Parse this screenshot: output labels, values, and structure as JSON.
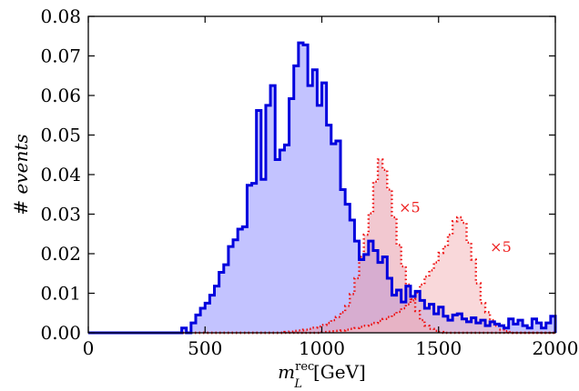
{
  "chart_data": {
    "type": "area",
    "xlabel": {
      "main": "m",
      "sup": "rec",
      "sub": "L",
      "unit": "[GeV]"
    },
    "ylabel": "# events",
    "xlim": [
      0,
      2000
    ],
    "ylim": [
      0,
      0.08
    ],
    "xticks": [
      "0",
      "500",
      "1000",
      "1500",
      "2000"
    ],
    "yticks": [
      "0.00",
      "0.01",
      "0.02",
      "0.03",
      "0.04",
      "0.05",
      "0.06",
      "0.07",
      "0.08"
    ],
    "grid": false,
    "bin_width": 20,
    "series": [
      {
        "style": "solid",
        "line_color": "#0000dd",
        "fill_color": "#b8b8ff",
        "x": [
          0,
          20,
          40,
          60,
          80,
          100,
          120,
          140,
          160,
          180,
          200,
          220,
          240,
          260,
          280,
          300,
          320,
          340,
          360,
          380,
          400,
          420,
          440,
          460,
          480,
          500,
          520,
          540,
          560,
          580,
          600,
          620,
          640,
          660,
          680,
          700,
          720,
          740,
          760,
          780,
          800,
          820,
          840,
          860,
          880,
          900,
          920,
          940,
          960,
          980,
          1000,
          1020,
          1040,
          1060,
          1080,
          1100,
          1120,
          1140,
          1160,
          1180,
          1200,
          1220,
          1240,
          1260,
          1280,
          1300,
          1320,
          1340,
          1360,
          1380,
          1400,
          1420,
          1440,
          1460,
          1480,
          1500,
          1520,
          1540,
          1560,
          1580,
          1600,
          1620,
          1640,
          1660,
          1680,
          1700,
          1720,
          1740,
          1760,
          1780,
          1800,
          1820,
          1840,
          1860,
          1880,
          1900,
          1920,
          1940,
          1960,
          1980
        ],
        "y": [
          0,
          0,
          0,
          0,
          0,
          0,
          0,
          0,
          0,
          0,
          0,
          0,
          0,
          0,
          0,
          0,
          0,
          0,
          0,
          0,
          0.0012,
          0,
          0.0025,
          0.0045,
          0.0062,
          0.0075,
          0.0095,
          0.0118,
          0.0153,
          0.0172,
          0.0218,
          0.0235,
          0.0262,
          0.0268,
          0.0373,
          0.0378,
          0.0562,
          0.0388,
          0.0575,
          0.0625,
          0.0438,
          0.0462,
          0.0475,
          0.0592,
          0.0675,
          0.0733,
          0.0728,
          0.0625,
          0.0665,
          0.0575,
          0.0632,
          0.0525,
          0.0478,
          0.0485,
          0.0362,
          0.0325,
          0.0285,
          0.0232,
          0.0185,
          0.0198,
          0.0232,
          0.0208,
          0.0178,
          0.0192,
          0.0138,
          0.0095,
          0.0108,
          0.0078,
          0.0118,
          0.0092,
          0.0105,
          0.0082,
          0.0062,
          0.0072,
          0.0048,
          0.0065,
          0.0042,
          0.0032,
          0.0045,
          0.0048,
          0.0035,
          0.0028,
          0.0038,
          0.0025,
          0.0032,
          0.0018,
          0.0028,
          0.0022,
          0.0018,
          0.0012,
          0.0035,
          0.0022,
          0.0032,
          0.0018,
          0.0012,
          0.0035,
          0.0025,
          0.0012,
          0.0025,
          0.0042
        ]
      },
      {
        "style": "dotted",
        "line_color": "#ee1111",
        "fill_color": "#e89aaa",
        "x": [
          0,
          20,
          40,
          60,
          80,
          100,
          120,
          140,
          160,
          180,
          200,
          220,
          240,
          260,
          280,
          300,
          320,
          340,
          360,
          380,
          400,
          420,
          440,
          460,
          480,
          500,
          520,
          540,
          560,
          580,
          600,
          620,
          640,
          660,
          680,
          700,
          720,
          740,
          760,
          780,
          800,
          820,
          840,
          860,
          880,
          900,
          920,
          940,
          960,
          980,
          1000,
          1020,
          1040,
          1060,
          1080,
          1100,
          1120,
          1140,
          1160,
          1180,
          1200,
          1220,
          1240,
          1260,
          1280,
          1300,
          1320,
          1340,
          1360,
          1380,
          1400,
          1420,
          1440,
          1460,
          1480,
          1500,
          1520,
          1540,
          1560,
          1580,
          1600,
          1620,
          1640,
          1660,
          1680,
          1700,
          1720,
          1740,
          1760,
          1780,
          1800,
          1820,
          1840,
          1860,
          1880,
          1900,
          1920,
          1940,
          1960,
          1980
        ],
        "y": [
          0,
          0,
          0,
          0,
          0,
          0,
          0,
          0,
          0,
          0,
          0,
          0,
          0,
          0,
          0,
          0,
          0,
          0,
          0,
          0,
          0,
          0,
          0,
          0,
          0,
          0,
          0,
          0,
          0,
          0,
          0,
          0,
          0,
          0,
          0,
          0,
          0,
          0,
          0,
          0,
          0,
          0,
          0.0002,
          0.0003,
          0.0005,
          0.0006,
          0.0008,
          0.001,
          0.0013,
          0.0016,
          0.002,
          0.0025,
          0.0032,
          0.004,
          0.0052,
          0.0068,
          0.0098,
          0.0138,
          0.0192,
          0.0248,
          0.0302,
          0.0382,
          0.0438,
          0.0412,
          0.0362,
          0.0292,
          0.0222,
          0.0168,
          0.0122,
          0.0082,
          0.0055,
          0.0032,
          0.0018,
          0.001,
          0.0005,
          0.0002,
          0,
          0,
          0,
          0,
          0,
          0,
          0,
          0,
          0,
          0,
          0,
          0,
          0,
          0,
          0,
          0,
          0,
          0,
          0,
          0,
          0,
          0,
          0,
          0
        ]
      },
      {
        "style": "dotted",
        "line_color": "#ee1111",
        "fill_color": "#f4b8bb",
        "x": [
          0,
          20,
          40,
          60,
          80,
          100,
          120,
          140,
          160,
          180,
          200,
          220,
          240,
          260,
          280,
          300,
          320,
          340,
          360,
          380,
          400,
          420,
          440,
          460,
          480,
          500,
          520,
          540,
          560,
          580,
          600,
          620,
          640,
          660,
          680,
          700,
          720,
          740,
          760,
          780,
          800,
          820,
          840,
          860,
          880,
          900,
          920,
          940,
          960,
          980,
          1000,
          1020,
          1040,
          1060,
          1080,
          1100,
          1120,
          1140,
          1160,
          1180,
          1200,
          1220,
          1240,
          1260,
          1280,
          1300,
          1320,
          1340,
          1360,
          1380,
          1400,
          1420,
          1440,
          1460,
          1480,
          1500,
          1520,
          1540,
          1560,
          1580,
          1600,
          1620,
          1640,
          1660,
          1680,
          1700,
          1720,
          1740,
          1760,
          1780,
          1800,
          1820,
          1840,
          1860,
          1880,
          1900,
          1920,
          1940,
          1960,
          1980
        ],
        "y": [
          0,
          0,
          0,
          0,
          0,
          0,
          0,
          0,
          0,
          0,
          0,
          0,
          0,
          0,
          0,
          0,
          0,
          0,
          0,
          0,
          0,
          0,
          0,
          0,
          0,
          0,
          0,
          0,
          0,
          0,
          0,
          0,
          0,
          0,
          0,
          0,
          0,
          0,
          0,
          0,
          0,
          0,
          0,
          0,
          0,
          0,
          0,
          0,
          0,
          0,
          0.0002,
          0.0003,
          0.0004,
          0.0005,
          0.0006,
          0.0008,
          0.001,
          0.0012,
          0.0015,
          0.0018,
          0.0021,
          0.0025,
          0.003,
          0.0035,
          0.004,
          0.0046,
          0.0053,
          0.0062,
          0.0072,
          0.0085,
          0.0102,
          0.0122,
          0.0142,
          0.0158,
          0.0178,
          0.0202,
          0.0218,
          0.0248,
          0.0282,
          0.0292,
          0.0278,
          0.0228,
          0.0185,
          0.0125,
          0.0075,
          0.0052,
          0.0032,
          0.0018,
          0.0008,
          0.0004,
          0.0002,
          0,
          0,
          0,
          0,
          0,
          0,
          0,
          0,
          0
        ]
      }
    ],
    "annotations": [
      {
        "text": "×5",
        "x": 1330,
        "y": 0.0305
      },
      {
        "text": "×5",
        "x": 1720,
        "y": 0.0205
      }
    ]
  }
}
